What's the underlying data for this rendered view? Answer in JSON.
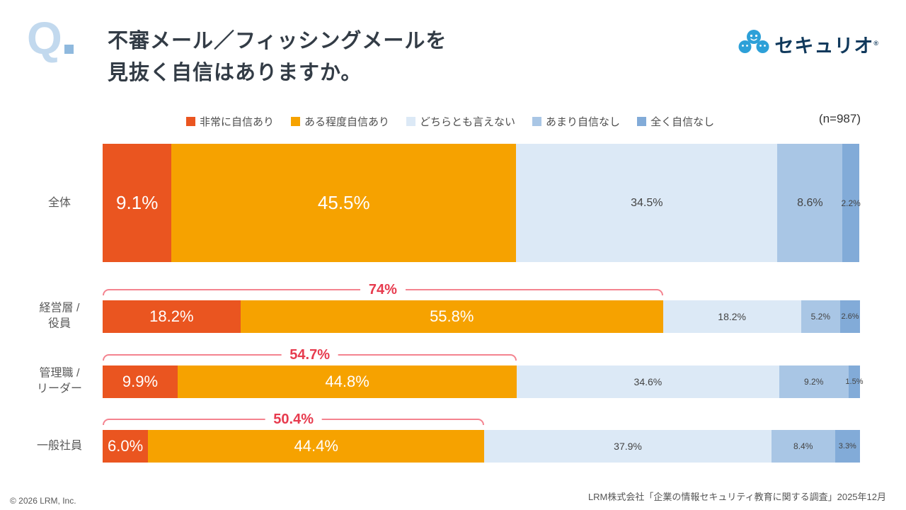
{
  "header": {
    "q_mark": "Q",
    "title_line1": "不審メール／フィッシングメールを",
    "title_line2": "見抜く自信はありますか。",
    "logo_text": "セキュリオ",
    "logo_reg": "®"
  },
  "sample_label": "(n=987)",
  "legend": [
    {
      "label": "非常に自信あり",
      "color": "#ea5520"
    },
    {
      "label": "ある程度自信あり",
      "color": "#f6a200"
    },
    {
      "label": "どちらとも言えない",
      "color": "#dce9f6"
    },
    {
      "label": "あまり自信なし",
      "color": "#a9c6e5"
    },
    {
      "label": "全く自信なし",
      "color": "#82abd8"
    }
  ],
  "chart_data": {
    "type": "bar",
    "orientation": "horizontal",
    "stacked": true,
    "unit": "%",
    "x_range": [
      0,
      100
    ],
    "n": 987,
    "series_names": [
      "非常に自信あり",
      "ある程度自信あり",
      "どちらとも言えない",
      "あまり自信なし",
      "全く自信なし"
    ],
    "series_colors": [
      "#ea5520",
      "#f6a200",
      "#dce9f6",
      "#a9c6e5",
      "#82abd8"
    ],
    "rows": [
      {
        "category": "全体",
        "category_lines": [
          "全体"
        ],
        "values": [
          9.1,
          45.5,
          34.5,
          8.6,
          2.2
        ],
        "labels": [
          "9.1%",
          "45.5%",
          "34.5%",
          "8.6%",
          "2.2%"
        ],
        "bracket": null
      },
      {
        "category": "経営層 / 役員",
        "category_lines": [
          "経営層 /",
          "役員"
        ],
        "values": [
          18.2,
          55.8,
          18.2,
          5.2,
          2.6
        ],
        "labels": [
          "18.2%",
          "55.8%",
          "18.2%",
          "5.2%",
          "2.6%"
        ],
        "bracket": {
          "label": "74%",
          "span": 74.0
        }
      },
      {
        "category": "管理職 / リーダー",
        "category_lines": [
          "管理職 /",
          "リーダー"
        ],
        "values": [
          9.9,
          44.8,
          34.6,
          9.2,
          1.5
        ],
        "labels": [
          "9.9%",
          "44.8%",
          "34.6%",
          "9.2%",
          "1.5%"
        ],
        "bracket": {
          "label": "54.7%",
          "span": 54.7
        }
      },
      {
        "category": "一般社員",
        "category_lines": [
          "一般社員"
        ],
        "values": [
          6.0,
          44.4,
          37.9,
          8.4,
          3.3
        ],
        "labels": [
          "6.0%",
          "44.4%",
          "37.9%",
          "8.4%",
          "3.3%"
        ],
        "bracket": {
          "label": "50.4%",
          "span": 50.4
        }
      }
    ]
  },
  "footer": {
    "copyright": "© 2026 LRM, Inc.",
    "source": "LRM株式会社「企業の情報セキュリティ教育に関する調査」2025年12月"
  }
}
